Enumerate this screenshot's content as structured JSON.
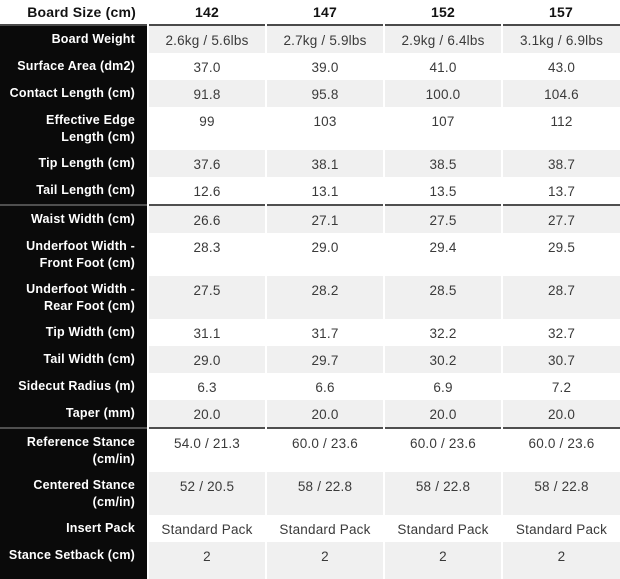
{
  "table": {
    "header": {
      "label": "Board Size (cm)",
      "sizes": [
        "142",
        "147",
        "152",
        "157"
      ]
    },
    "rows": [
      {
        "label": "Board Weight",
        "values": [
          "2.6kg / 5.6lbs",
          "2.7kg / 5.9lbs",
          "2.9kg / 6.4lbs",
          "3.1kg / 6.9lbs"
        ],
        "tall": false,
        "section_start": false
      },
      {
        "label": "Surface Area (dm2)",
        "values": [
          "37.0",
          "39.0",
          "41.0",
          "43.0"
        ],
        "tall": false,
        "section_start": false
      },
      {
        "label": "Contact Length (cm)",
        "values": [
          "91.8",
          "95.8",
          "100.0",
          "104.6"
        ],
        "tall": false,
        "section_start": false
      },
      {
        "label": "Effective Edge Length (cm)",
        "values": [
          "99",
          "103",
          "107",
          "112"
        ],
        "tall": true,
        "section_start": false
      },
      {
        "label": "Tip Length (cm)",
        "values": [
          "37.6",
          "38.1",
          "38.5",
          "38.7"
        ],
        "tall": false,
        "section_start": false
      },
      {
        "label": "Tail Length (cm)",
        "values": [
          "12.6",
          "13.1",
          "13.5",
          "13.7"
        ],
        "tall": false,
        "section_start": false
      },
      {
        "label": "Waist Width (cm)",
        "values": [
          "26.6",
          "27.1",
          "27.5",
          "27.7"
        ],
        "tall": false,
        "section_start": true
      },
      {
        "label": "Underfoot Width - Front Foot (cm)",
        "values": [
          "28.3",
          "29.0",
          "29.4",
          "29.5"
        ],
        "tall": true,
        "section_start": false
      },
      {
        "label": "Underfoot Width - Rear Foot (cm)",
        "values": [
          "27.5",
          "28.2",
          "28.5",
          "28.7"
        ],
        "tall": true,
        "section_start": false
      },
      {
        "label": "Tip Width (cm)",
        "values": [
          "31.1",
          "31.7",
          "32.2",
          "32.7"
        ],
        "tall": false,
        "section_start": false
      },
      {
        "label": "Tail Width (cm)",
        "values": [
          "29.0",
          "29.7",
          "30.2",
          "30.7"
        ],
        "tall": false,
        "section_start": false
      },
      {
        "label": "Sidecut Radius (m)",
        "values": [
          "6.3",
          "6.6",
          "6.9",
          "7.2"
        ],
        "tall": false,
        "section_start": false
      },
      {
        "label": "Taper (mm)",
        "values": [
          "20.0",
          "20.0",
          "20.0",
          "20.0"
        ],
        "tall": false,
        "section_start": false
      },
      {
        "label": "Reference Stance (cm/in)",
        "values": [
          "54.0 / 21.3",
          "60.0 / 23.6",
          "60.0 / 23.6",
          "60.0 / 23.6"
        ],
        "tall": true,
        "section_start": true
      },
      {
        "label": "Centered Stance (cm/in)",
        "values": [
          "52 / 20.5",
          "58 / 22.8",
          "58 / 22.8",
          "58 / 22.8"
        ],
        "tall": true,
        "section_start": false
      },
      {
        "label": "Insert Pack",
        "values": [
          "Standard Pack",
          "Standard Pack",
          "Standard Pack",
          "Standard Pack"
        ],
        "tall": false,
        "section_start": false
      },
      {
        "label": "Stance Setback (cm)",
        "values": [
          "2",
          "2",
          "2",
          "2"
        ],
        "tall": false,
        "section_start": false
      }
    ]
  },
  "colors": {
    "label_column_bg": "#0a0a0a",
    "label_text": "#ffffff",
    "row_stripe": "#f0f0f0",
    "row_plain": "#ffffff",
    "section_border": "#4f4f4f",
    "header_border": "#4a4a4a",
    "value_text": "#3a3a3a",
    "header_text": "#121212"
  }
}
